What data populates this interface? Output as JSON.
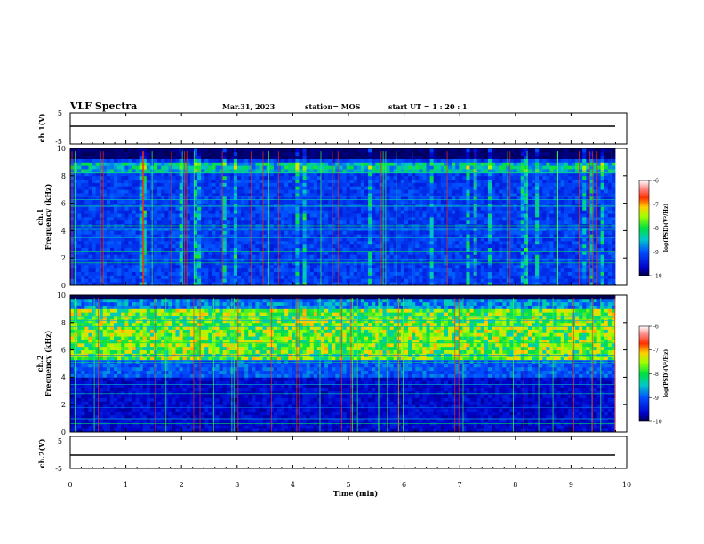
{
  "header": {
    "title": "VLF Spectra",
    "date": "Mar.31, 2023",
    "station": "station= MOS",
    "start_ut": "start  UT =   1 : 20 : 1"
  },
  "chart_data": [
    {
      "type": "line",
      "id": "ch1-waveform",
      "ylabel": "ch.1(V)",
      "ylim": [
        -5,
        5
      ],
      "yticks": [
        5,
        -5
      ],
      "x": [
        0,
        10
      ],
      "values": [
        0,
        0
      ],
      "note_xlim": [
        0,
        10
      ]
    },
    {
      "type": "heatmap",
      "id": "ch1-spectrogram",
      "ylabel": "ch.1\nFrequency (kHz)",
      "ylabel_top": "ch.1",
      "ylabel_bottom": "Frequency (kHz)",
      "ylim": [
        0,
        10
      ],
      "yticks": [
        "10",
        "8",
        "6",
        "4",
        "2",
        "0"
      ],
      "xlim": [
        0,
        10
      ],
      "colorbar": {
        "label": "log(PSD)(V²/Hz)",
        "range": [
          -10,
          -6
        ],
        "ticks": [
          "-6",
          "-7",
          "-8",
          "-9",
          "-10"
        ]
      },
      "band_kHz": [
        0.5,
        9.0
      ],
      "intense_band_kHz": [
        8.0,
        9.0
      ]
    },
    {
      "type": "heatmap",
      "id": "ch2-spectrogram",
      "ylabel_top": "ch.2",
      "ylabel_bottom": "Frequency (kHz)",
      "ylim": [
        0,
        10
      ],
      "yticks": [
        "10",
        "8",
        "6",
        "4",
        "2",
        "0"
      ],
      "xlim": [
        0,
        10
      ],
      "colorbar": {
        "label": "log(PSD)(V²/Hz)",
        "range": [
          -10,
          -6
        ],
        "ticks": [
          "-6",
          "-7",
          "-8",
          "-9",
          "-10"
        ]
      },
      "band_kHz": [
        0.5,
        9.5
      ],
      "intense_band_kHz": [
        5.5,
        8.5
      ]
    },
    {
      "type": "line",
      "id": "ch2-waveform",
      "ylabel": "ch.2(V)",
      "ylim": [
        -5,
        5
      ],
      "yticks": [
        5,
        -5
      ],
      "x": [
        0,
        10
      ],
      "values": [
        0,
        0
      ]
    }
  ],
  "xaxis": {
    "label": "Time  (min)",
    "ticks": [
      "0",
      "1",
      "2",
      "3",
      "4",
      "5",
      "6",
      "7",
      "8",
      "9",
      "10"
    ],
    "range": [
      0,
      10
    ]
  },
  "colors": {
    "background": "#000000",
    "low": "#0000b4",
    "mid": "#00c878",
    "high": "#ff2a00",
    "top": "#ffffff"
  }
}
